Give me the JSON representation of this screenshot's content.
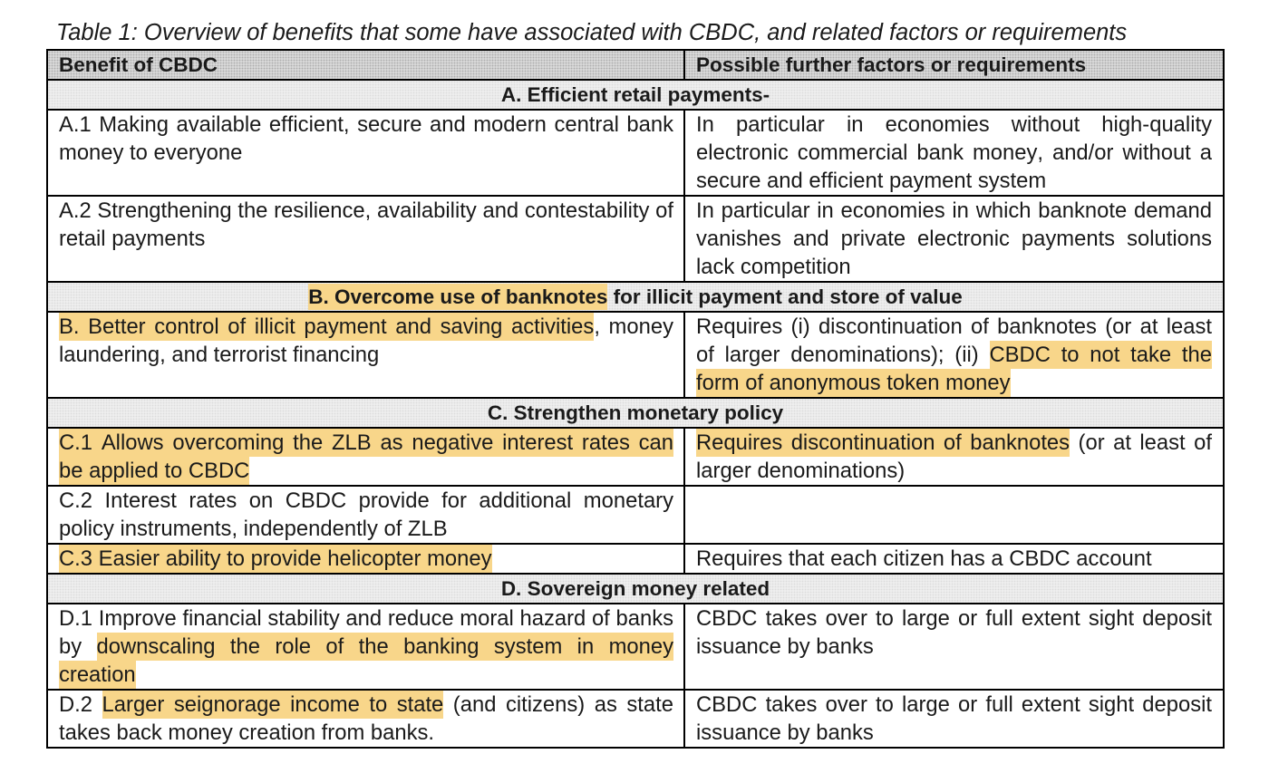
{
  "caption": "Table 1: Overview of benefits that some have associated with CBDC, and related factors or requirements",
  "colors": {
    "highlight": "#f8d68a",
    "header_bg": "#d9d9d9",
    "section_bg": "#efefef",
    "border": "#000000",
    "text": "#1a1a1a"
  },
  "table": {
    "columns": [
      "Benefit of CBDC",
      "Possible further factors or requirements"
    ],
    "rows": [
      {
        "type": "section",
        "segments": [
          {
            "text": "A. Efficient retail payments-",
            "highlight": false
          }
        ]
      },
      {
        "type": "item",
        "left": [
          {
            "text": "A.1 Making available efficient, secure and modern central bank money to everyone",
            "highlight": false
          }
        ],
        "right": [
          {
            "text": "In particular in economies without high-quality electronic commercial bank money, and/or without a secure and efficient payment system",
            "highlight": false
          }
        ]
      },
      {
        "type": "item",
        "left": [
          {
            "text": "A.2 Strengthening the resilience, availability and contestability of retail payments",
            "highlight": false
          }
        ],
        "right": [
          {
            "text": "In particular in economies in which banknote demand vanishes and private electronic payments solutions lack competition",
            "highlight": false
          }
        ]
      },
      {
        "type": "section",
        "segments": [
          {
            "text": "B. Overcome use of banknotes",
            "highlight": true
          },
          {
            "text": " for illicit payment and store of value",
            "highlight": false
          }
        ]
      },
      {
        "type": "item",
        "left": [
          {
            "text": "B. Better control of illicit payment and saving activities",
            "highlight": true
          },
          {
            "text": ", money laundering, and terrorist financing",
            "highlight": false
          }
        ],
        "right": [
          {
            "text": "Requires (i) discontinuation of banknotes (or at least of larger denominations); (ii) ",
            "highlight": false
          },
          {
            "text": "CBDC to not take the form of anonymous token money",
            "highlight": true
          }
        ]
      },
      {
        "type": "section",
        "segments": [
          {
            "text": "C. Strengthen monetary policy",
            "highlight": false
          }
        ]
      },
      {
        "type": "item",
        "left": [
          {
            "text": "C.1 Allows overcoming the ZLB as negative interest rates can be applied to CBDC",
            "highlight": true
          }
        ],
        "right": [
          {
            "text": "Requires discontinuation of banknotes",
            "highlight": true
          },
          {
            "text": " (or at least of larger denominations)",
            "highlight": false
          }
        ]
      },
      {
        "type": "item",
        "left": [
          {
            "text": "C.2 Interest rates on CBDC provide for additional monetary policy instruments, independently of ZLB",
            "highlight": false
          }
        ],
        "right": []
      },
      {
        "type": "item",
        "left": [
          {
            "text": "C.3 Easier ability to provide helicopter money",
            "highlight": true
          }
        ],
        "right": [
          {
            "text": "Requires that each citizen has a CBDC account",
            "highlight": false
          }
        ]
      },
      {
        "type": "section",
        "segments": [
          {
            "text": "D. Sovereign money related",
            "highlight": false
          }
        ]
      },
      {
        "type": "item",
        "left": [
          {
            "text": "D.1 Improve financial stability and reduce moral hazard of banks by ",
            "highlight": false
          },
          {
            "text": "downscaling the role of the banking system in money creation",
            "highlight": true
          }
        ],
        "right": [
          {
            "text": "CBDC takes over to large or full extent sight deposit issuance by banks",
            "highlight": false
          }
        ]
      },
      {
        "type": "item",
        "left": [
          {
            "text": "D.2 ",
            "highlight": false
          },
          {
            "text": "Larger seignorage income to state",
            "highlight": true
          },
          {
            "text": " (and citizens) as state takes back money creation from banks.",
            "highlight": false
          }
        ],
        "right": [
          {
            "text": "CBDC takes over to large or full extent sight deposit issuance by banks",
            "highlight": false
          }
        ]
      }
    ]
  }
}
